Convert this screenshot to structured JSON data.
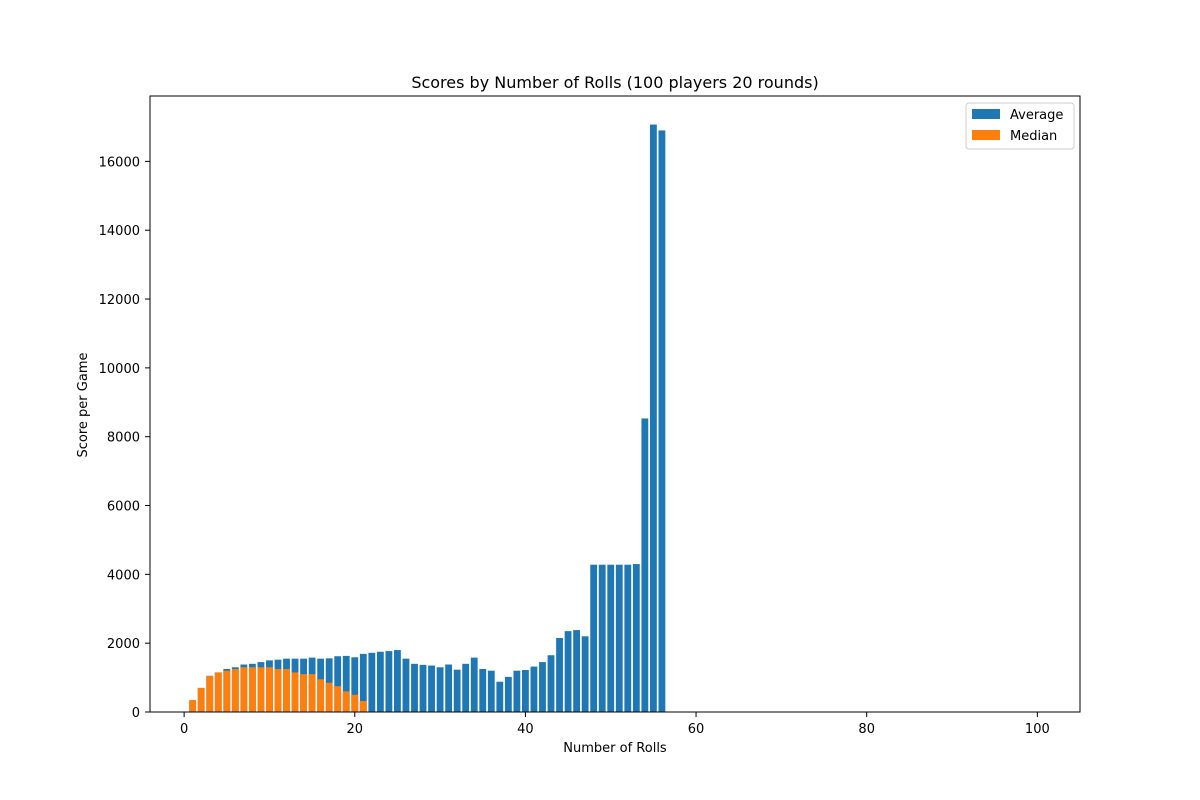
{
  "chart_data": {
    "type": "bar",
    "title": "Scores by Number of Rolls  (100 players 20 rounds)",
    "xlabel": "Number of Rolls",
    "ylabel": "Score per Game",
    "xlim": [
      -4,
      105
    ],
    "ylim": [
      0,
      17900
    ],
    "xticks": [
      0,
      20,
      40,
      60,
      80,
      100
    ],
    "yticks": [
      0,
      2000,
      4000,
      6000,
      8000,
      10000,
      12000,
      14000,
      16000
    ],
    "legend_position": "top-right",
    "grid": false,
    "series": [
      {
        "name": "Average",
        "color": "#1f77b4",
        "x": [
          1,
          2,
          3,
          4,
          5,
          6,
          7,
          8,
          9,
          10,
          11,
          12,
          13,
          14,
          15,
          16,
          17,
          18,
          19,
          20,
          21,
          22,
          23,
          24,
          25,
          26,
          27,
          28,
          29,
          30,
          31,
          32,
          33,
          34,
          35,
          36,
          37,
          38,
          39,
          40,
          41,
          42,
          43,
          44,
          45,
          46,
          47,
          48,
          49,
          50,
          51,
          52,
          53,
          54,
          55,
          56
        ],
        "values": [
          300,
          700,
          1050,
          1150,
          1250,
          1300,
          1380,
          1400,
          1450,
          1500,
          1520,
          1550,
          1550,
          1550,
          1580,
          1550,
          1560,
          1620,
          1630,
          1590,
          1690,
          1720,
          1750,
          1770,
          1800,
          1550,
          1400,
          1370,
          1350,
          1300,
          1380,
          1230,
          1400,
          1580,
          1250,
          1200,
          880,
          1020,
          1200,
          1220,
          1320,
          1450,
          1650,
          2150,
          2350,
          2380,
          2200,
          4280,
          4280,
          4280,
          4280,
          4280,
          4300,
          8530,
          17070,
          16900
        ]
      },
      {
        "name": "Median",
        "color": "#ff7f0e",
        "x": [
          1,
          2,
          3,
          4,
          5,
          6,
          7,
          8,
          9,
          10,
          11,
          12,
          13,
          14,
          15,
          16,
          17,
          18,
          19,
          20,
          21
        ],
        "values": [
          350,
          700,
          1050,
          1150,
          1200,
          1250,
          1300,
          1300,
          1300,
          1300,
          1250,
          1250,
          1150,
          1100,
          1100,
          950,
          850,
          750,
          600,
          500,
          320
        ]
      }
    ]
  }
}
